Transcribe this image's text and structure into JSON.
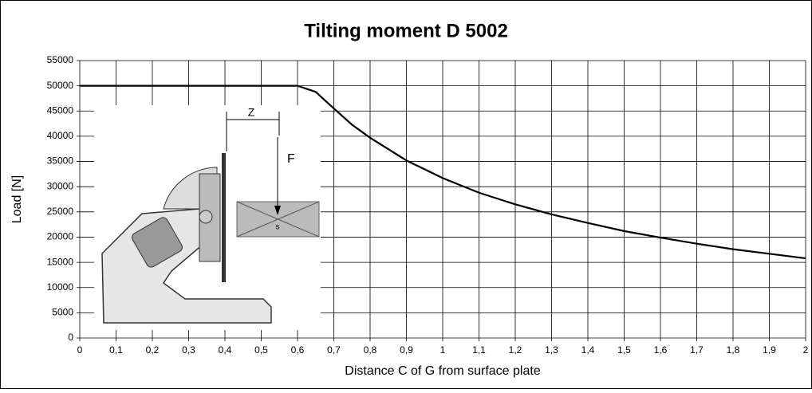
{
  "chart_data": {
    "type": "line",
    "title": "Tilting moment D 5002",
    "xlabel": "Distance C of G from surface plate",
    "ylabel": "Load [N]",
    "x": [
      0,
      0.1,
      0.2,
      0.3,
      0.4,
      0.5,
      0.6,
      0.65,
      0.7,
      0.75,
      0.8,
      0.9,
      1.0,
      1.1,
      1.2,
      1.3,
      1.4,
      1.5,
      1.6,
      1.7,
      1.8,
      1.9,
      2.0
    ],
    "series": [
      {
        "color": "#000000",
        "values": [
          50000,
          50000,
          50000,
          50000,
          50000,
          50000,
          50000,
          48800,
          45500,
          42300,
          39700,
          35200,
          31700,
          28800,
          26500,
          24500,
          22800,
          21200,
          19900,
          18700,
          17600,
          16700,
          15800
        ]
      }
    ],
    "xlim": [
      0,
      2
    ],
    "ylim": [
      0,
      55000
    ],
    "xticks": [
      0,
      {
        "value": 0.1,
        "label": "0,1"
      },
      {
        "value": 0.2,
        "label": "0,2"
      },
      {
        "value": 0.3,
        "label": "0,3"
      },
      {
        "value": 0.4,
        "label": "0,4"
      },
      {
        "value": 0.5,
        "label": "0,5"
      },
      {
        "value": 0.6,
        "label": "0,6"
      },
      {
        "value": 0.7,
        "label": "0,7"
      },
      {
        "value": 0.8,
        "label": "0,8"
      },
      {
        "value": 0.9,
        "label": "0,9"
      },
      1,
      {
        "value": 1.1,
        "label": "1,1"
      },
      {
        "value": 1.2,
        "label": "1,2"
      },
      {
        "value": 1.3,
        "label": "1,3"
      },
      {
        "value": 1.4,
        "label": "1,4"
      },
      {
        "value": 1.5,
        "label": "1,5"
      },
      {
        "value": 1.6,
        "label": "1,6"
      },
      {
        "value": 1.7,
        "label": "1,7"
      },
      {
        "value": 1.8,
        "label": "1,8"
      },
      {
        "value": 1.9,
        "label": "1,9"
      },
      2
    ],
    "yticks": [
      0,
      5000,
      10000,
      15000,
      20000,
      25000,
      30000,
      35000,
      40000,
      45000,
      50000,
      55000
    ],
    "grid": true,
    "illustration_labels": [
      "Z",
      "F",
      "s"
    ]
  }
}
